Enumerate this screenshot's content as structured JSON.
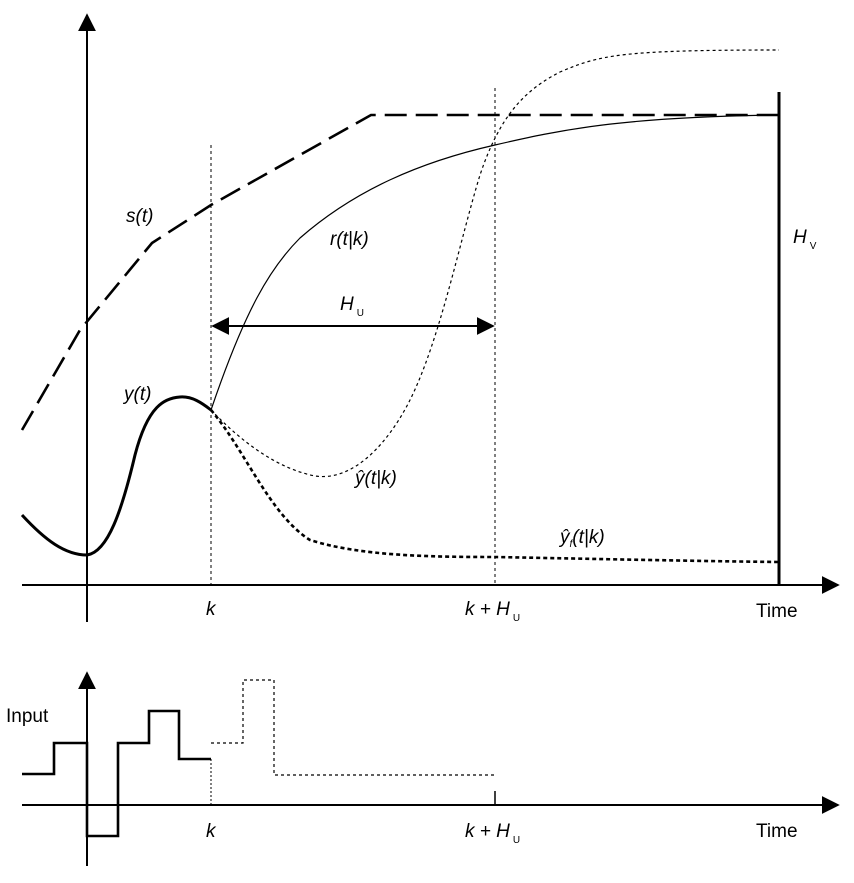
{
  "upper_plot": {
    "x_axis_word": "Time",
    "labels": {
      "s": "s(t)",
      "r": "r(t|k)",
      "y": "y(t)",
      "yhat": "ŷ(t|k)",
      "yhat_f_base": "ŷ",
      "yhat_f_sub": "f",
      "yhat_f_rest": "(t|k)",
      "hu_main": "H",
      "hu_sub": "U",
      "hv_main": "H",
      "hv_sub": "V"
    },
    "ticks": {
      "k": "k",
      "k_plus": "k + H",
      "k_plus_sub": "U"
    }
  },
  "lower_plot": {
    "y_axis_word": "Input",
    "x_axis_word": "Time",
    "ticks": {
      "k": "k",
      "k_plus": "k + H",
      "k_plus_sub": "U"
    }
  },
  "colors": {
    "ink": "#000000",
    "background": "#ffffff"
  }
}
